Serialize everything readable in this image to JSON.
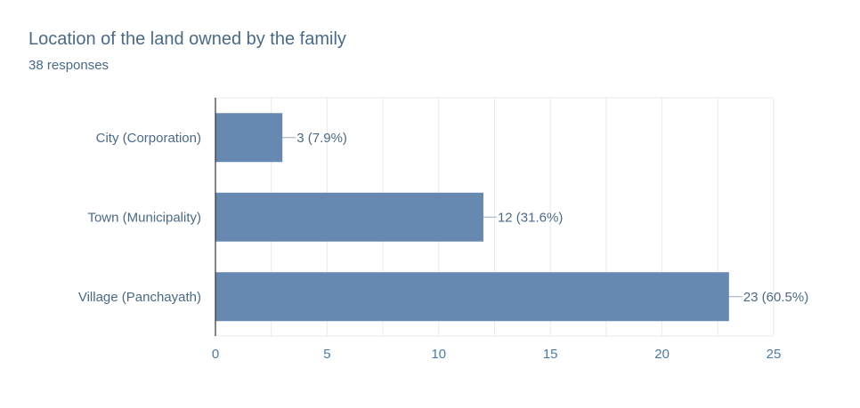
{
  "chart_data": {
    "type": "bar",
    "orientation": "horizontal",
    "title": "Location of the land owned by the family",
    "subtitle": "38 responses",
    "categories": [
      "City (Corporation)",
      "Town (Municipality)",
      "Village (Panchayath)"
    ],
    "values": [
      3,
      12,
      23
    ],
    "data_labels": [
      "3 (7.9%)",
      "12 (31.6%)",
      "23 (60.5%)"
    ],
    "x_ticks": [
      0,
      5,
      10,
      15,
      20,
      25
    ],
    "xlim": [
      0,
      25
    ],
    "grid": true,
    "bar_color": "#6788b1",
    "gridline_color": "#ebebeb",
    "axis_color": "#333333"
  }
}
